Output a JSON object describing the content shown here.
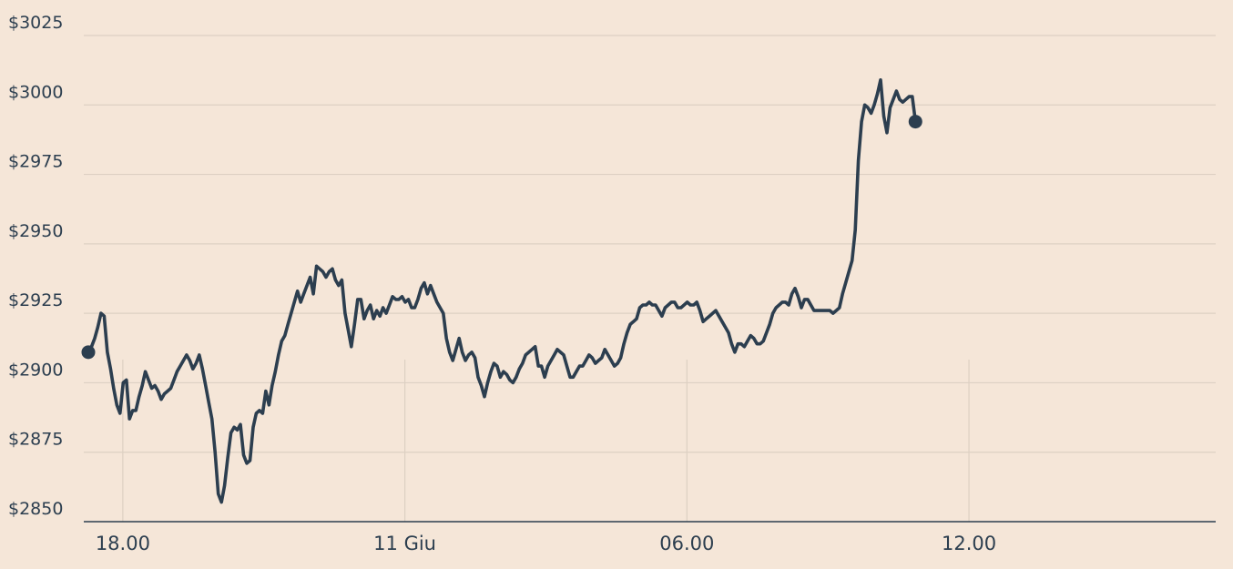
{
  "chart_data": {
    "type": "line",
    "title": "",
    "xlabel": "",
    "ylabel": "",
    "y_ticks": [
      {
        "value": 3025,
        "label": "$3025"
      },
      {
        "value": 3000,
        "label": "$3000"
      },
      {
        "value": 2975,
        "label": "$2975"
      },
      {
        "value": 2950,
        "label": "$2950"
      },
      {
        "value": 2925,
        "label": "$2925"
      },
      {
        "value": 2900,
        "label": "$2900"
      },
      {
        "value": 2875,
        "label": "$2875"
      },
      {
        "value": 2850,
        "label": "$2850"
      }
    ],
    "ylim": [
      2850,
      3025
    ],
    "x_ticks": [
      {
        "index": 6,
        "label": "18.00"
      },
      {
        "index": 95,
        "label": "11 Giu"
      },
      {
        "index": 184,
        "label": "06.00"
      },
      {
        "index": 273,
        "label": "12.00"
      }
    ],
    "x_count": 356,
    "grid": "horizontal",
    "colors": {
      "background": "#f5e6d8",
      "line": "#2c3e4f",
      "grid": "#ddd0c3",
      "axis": "#2c3e4f"
    },
    "series": [
      {
        "values": [
          2911,
          2913,
          2916,
          2920,
          2925,
          2924,
          2911,
          2905,
          2898,
          2892,
          2889,
          2900,
          2901,
          2887,
          2890,
          2890,
          2895,
          2899,
          2904,
          2901,
          2898,
          2899,
          2897,
          2894,
          2896,
          2897,
          2898,
          2901,
          2904,
          2906,
          2908,
          2910,
          2908,
          2905,
          2907,
          2910,
          2905,
          2899,
          2893,
          2887,
          2875,
          2860,
          2857,
          2863,
          2873,
          2882,
          2884,
          2883,
          2885,
          2874,
          2871,
          2872,
          2884,
          2889,
          2890,
          2889,
          2897,
          2892,
          2899,
          2904,
          2910,
          2915,
          2917,
          2921,
          2925,
          2929,
          2933,
          2929,
          2932,
          2935,
          2938,
          2932,
          2942,
          2941,
          2940,
          2938,
          2940,
          2941,
          2937,
          2935,
          2937,
          2925,
          2919,
          2913,
          2921,
          2930,
          2930,
          2923,
          2926,
          2928,
          2923,
          2926,
          2924,
          2927,
          2925,
          2928,
          2931,
          2930,
          2930,
          2931,
          2929,
          2930,
          2927,
          2927,
          2930,
          2934,
          2936,
          2932,
          2935,
          2932,
          2929,
          2927,
          2925,
          2916,
          2911,
          2908,
          2912,
          2916,
          2911,
          2908,
          2910,
          2911,
          2909,
          2902,
          2899,
          2895,
          2900,
          2904,
          2907,
          2906,
          2902,
          2904,
          2903,
          2901,
          2900,
          2902,
          2905,
          2907,
          2910,
          2911,
          2912,
          2913,
          2906,
          2906,
          2902,
          2906,
          2908,
          2910,
          2912,
          2911,
          2910,
          2906,
          2902,
          2902,
          2904,
          2906,
          2906,
          2908,
          2910,
          2909,
          2907,
          2908,
          2909,
          2912,
          2910,
          2908,
          2906,
          2907,
          2909,
          2914,
          2918,
          2921,
          2922,
          2923,
          2927,
          2928,
          2928,
          2929,
          2928,
          2928,
          2926,
          2924,
          2927,
          2928,
          2929,
          2929,
          2927,
          2927,
          2928,
          2929,
          2928,
          2928,
          2929,
          2926,
          2922,
          2923,
          2924,
          2925,
          2926,
          2924,
          2922,
          2920,
          2918,
          2914,
          2911,
          2914,
          2914,
          2913,
          2915,
          2917,
          2916,
          2914,
          2914,
          2915,
          2918,
          2921,
          2925,
          2927,
          2928,
          2929,
          2929,
          2928,
          2932,
          2934,
          2931,
          2927,
          2930,
          2930,
          2928,
          2926,
          2926,
          2926,
          2926,
          2926,
          2926,
          2925,
          2926,
          2927,
          2932,
          2936,
          2940,
          2944,
          2955,
          2980,
          2994,
          3000,
          2999,
          2997,
          3000,
          3004,
          3009,
          2996,
          2990,
          2999,
          3002,
          3005,
          3002,
          3001,
          3002,
          3003,
          3003,
          2994
        ]
      }
    ]
  }
}
